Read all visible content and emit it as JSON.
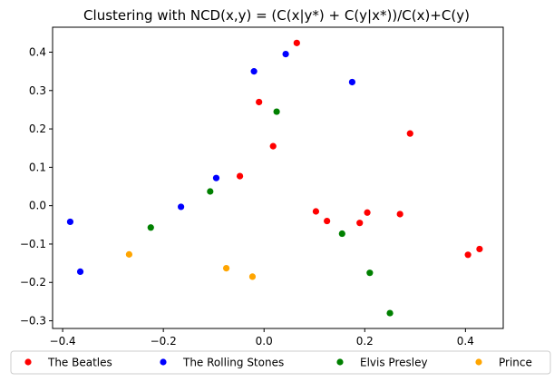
{
  "chart_data": {
    "type": "scatter",
    "title": "Clustering with NCD(x,y) = (C(x|y*) + C(y|x*))/C(x)+C(y)",
    "xlabel": "",
    "ylabel": "",
    "xlim": [
      -0.42,
      0.475
    ],
    "ylim": [
      -0.32,
      0.465
    ],
    "x_ticks": [
      -0.4,
      -0.2,
      0.0,
      0.2,
      0.4
    ],
    "x_tick_labels": [
      "−0.4",
      "−0.2",
      "0.0",
      "0.2",
      "0.4"
    ],
    "y_ticks": [
      -0.3,
      -0.2,
      -0.1,
      0.0,
      0.1,
      0.2,
      0.3,
      0.4
    ],
    "y_tick_labels": [
      "−0.3",
      "−0.2",
      "−0.1",
      "0.0",
      "0.1",
      "0.2",
      "0.3",
      "0.4"
    ],
    "grid": false,
    "legend_position": "bottom-outside",
    "series": [
      {
        "name": "The Beatles",
        "color": "#ff0000",
        "points": [
          [
            0.065,
            0.424
          ],
          [
            -0.01,
            0.27
          ],
          [
            0.018,
            0.155
          ],
          [
            -0.048,
            0.077
          ],
          [
            0.29,
            0.188
          ],
          [
            0.103,
            -0.015
          ],
          [
            0.125,
            -0.04
          ],
          [
            0.19,
            -0.045
          ],
          [
            0.205,
            -0.018
          ],
          [
            0.27,
            -0.022
          ],
          [
            0.405,
            -0.128
          ],
          [
            0.428,
            -0.113
          ]
        ]
      },
      {
        "name": "The Rolling Stones",
        "color": "#0000ff",
        "points": [
          [
            -0.02,
            0.35
          ],
          [
            0.043,
            0.395
          ],
          [
            0.175,
            0.322
          ],
          [
            -0.095,
            0.072
          ],
          [
            -0.165,
            -0.003
          ],
          [
            -0.385,
            -0.042
          ],
          [
            -0.365,
            -0.172
          ]
        ]
      },
      {
        "name": "Elvis Presley",
        "color": "#008000",
        "points": [
          [
            0.025,
            0.245
          ],
          [
            -0.107,
            0.037
          ],
          [
            -0.225,
            -0.057
          ],
          [
            0.155,
            -0.073
          ],
          [
            0.21,
            -0.175
          ],
          [
            0.25,
            -0.28
          ]
        ]
      },
      {
        "name": "Prince",
        "color": "#ffa500",
        "points": [
          [
            -0.268,
            -0.127
          ],
          [
            -0.075,
            -0.163
          ],
          [
            -0.023,
            -0.185
          ]
        ]
      }
    ]
  }
}
